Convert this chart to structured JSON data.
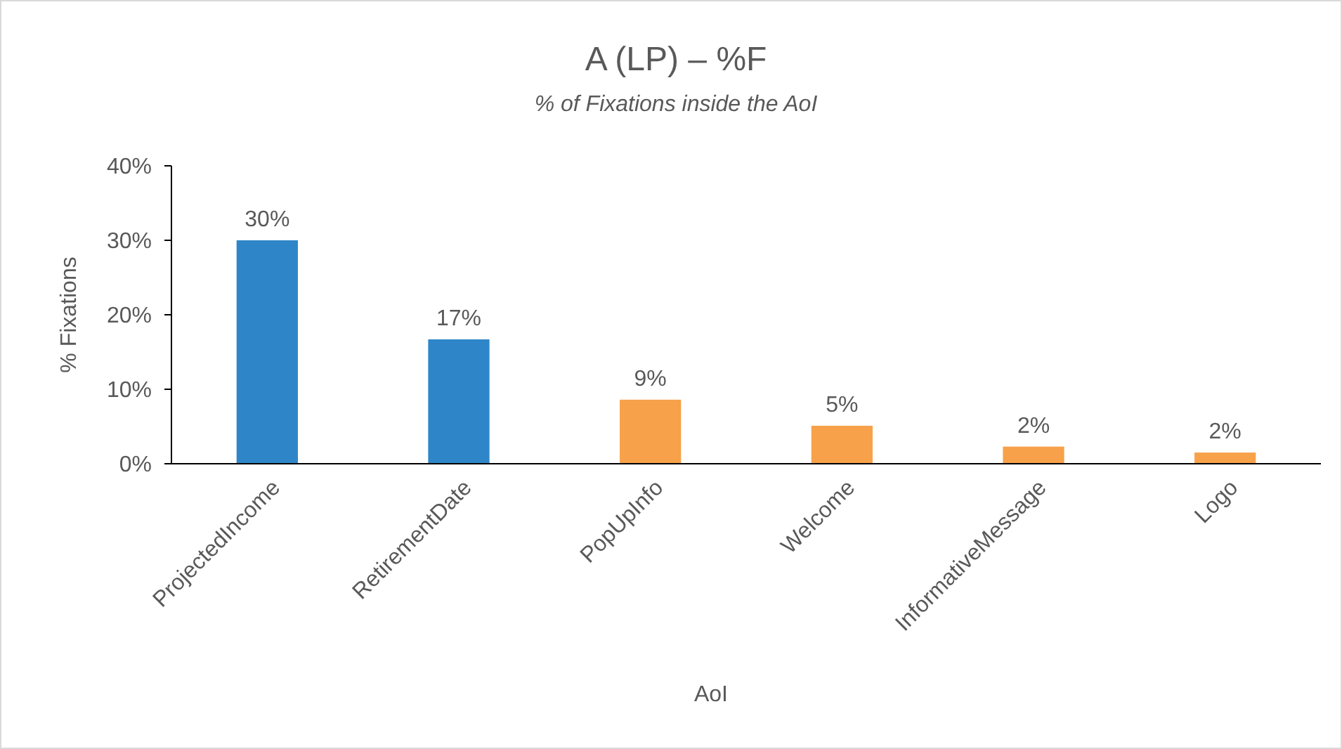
{
  "chart_data": {
    "type": "bar",
    "title": "A (LP) – %F",
    "subtitle": "% of Fixations inside the AoI",
    "xlabel": "AoI",
    "ylabel": "% Fixations",
    "categories": [
      "ProjectedIncome",
      "RetirementDate",
      "PopUpInfo",
      "Welcome",
      "InformativeMessage",
      "Logo"
    ],
    "values": [
      30,
      16.7,
      8.6,
      5.1,
      2.3,
      1.5
    ],
    "value_labels": [
      "30%",
      "17%",
      "9%",
      "5%",
      "2%",
      "2%"
    ],
    "colors": [
      "#2e86c8",
      "#2e86c8",
      "#f7a14a",
      "#f7a14a",
      "#f7a14a",
      "#f7a14a"
    ],
    "ylim": [
      0,
      40
    ],
    "yticks": [
      {
        "value": 0,
        "label": "0%"
      },
      {
        "value": 10,
        "label": "10%"
      },
      {
        "value": 20,
        "label": "20%"
      },
      {
        "value": 30,
        "label": "30%"
      },
      {
        "value": 40,
        "label": "40%"
      }
    ],
    "grid": false
  }
}
